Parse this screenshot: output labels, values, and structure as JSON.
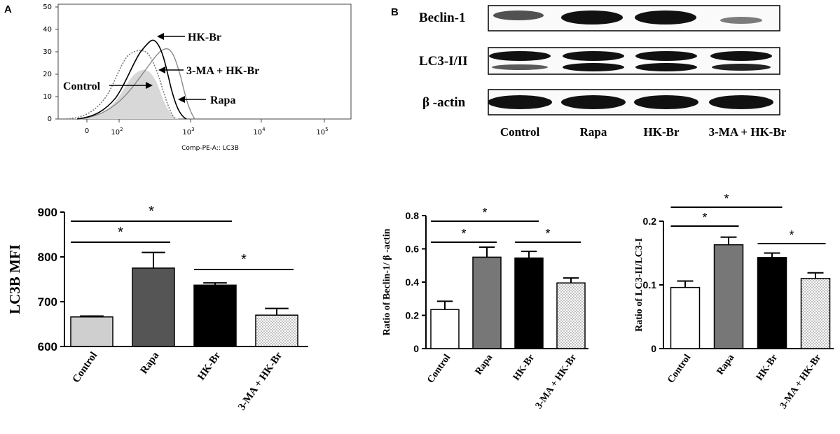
{
  "panel_labels": [
    "A",
    "B"
  ],
  "flow": {
    "type": "line",
    "xlabel": "Comp-PE-A:: LC3B",
    "y_ticks": [
      "50",
      "40",
      "30",
      "20",
      "10",
      "0"
    ],
    "x_ticks": [
      {
        "base": "0",
        "exp": ""
      },
      {
        "base": "10",
        "exp": "2"
      },
      {
        "base": "10",
        "exp": "3"
      },
      {
        "base": "10",
        "exp": "4"
      },
      {
        "base": "10",
        "exp": "5"
      }
    ],
    "annotations": [
      "HK-Br",
      "3-MA + HK-Br",
      "Control",
      "Rapa"
    ]
  },
  "blot": {
    "rows": [
      "Beclin-1",
      "LC3-I/II",
      "β -actin"
    ],
    "lanes": [
      "Control",
      "Rapa",
      "HK-Br",
      "3-MA + HK-Br"
    ]
  },
  "chart_data": [
    {
      "type": "bar",
      "ylabel": "LC3B MFI",
      "categories": [
        "Control",
        "Rapa",
        "HK-Br",
        "3-MA + HK-Br"
      ],
      "values": [
        666,
        775,
        737,
        670
      ],
      "errors": [
        2,
        35,
        5,
        15
      ],
      "ylim": [
        600,
        900
      ],
      "y_ticks": [
        "900",
        "800",
        "700",
        "600"
      ],
      "fills": [
        "#cfcfcf",
        "#555555",
        "#000000",
        "dots"
      ],
      "significance": [
        {
          "from": 0,
          "to": 1,
          "label": "*"
        },
        {
          "from": 0,
          "to": 2,
          "label": "*"
        },
        {
          "from": 2,
          "to": 3,
          "label": "*"
        }
      ]
    },
    {
      "type": "bar",
      "ylabel": "Ratio of Beclin-1/ β -actin",
      "categories": [
        "Control",
        "Rapa",
        "HK-Br",
        "3-MA + HK-Br"
      ],
      "values": [
        0.235,
        0.55,
        0.545,
        0.395
      ],
      "errors": [
        0.05,
        0.06,
        0.04,
        0.03
      ],
      "ylim": [
        0,
        0.8
      ],
      "y_ticks": [
        "0.8",
        "0.6",
        "0.4",
        "0.2",
        "0"
      ],
      "fills": [
        "#ffffff",
        "#777777",
        "#000000",
        "dots"
      ],
      "significance": [
        {
          "from": 0,
          "to": 1,
          "label": "*"
        },
        {
          "from": 0,
          "to": 2,
          "label": "*"
        },
        {
          "from": 2,
          "to": 3,
          "label": "*"
        }
      ]
    },
    {
      "type": "bar",
      "ylabel": "Ratio of LC3-II/LC3-I",
      "categories": [
        "Control",
        "Rapa",
        "HK-Br",
        "3-MA + HK-Br"
      ],
      "values": [
        0.096,
        0.163,
        0.143,
        0.11
      ],
      "errors": [
        0.01,
        0.012,
        0.007,
        0.009
      ],
      "ylim": [
        0,
        0.2
      ],
      "y_ticks": [
        "0.2",
        "0.1",
        "0"
      ],
      "fills": [
        "#ffffff",
        "#777777",
        "#000000",
        "dots"
      ],
      "significance": [
        {
          "from": 0,
          "to": 1,
          "label": "*"
        },
        {
          "from": 0,
          "to": 2,
          "label": "*"
        },
        {
          "from": 2,
          "to": 3,
          "label": "*"
        }
      ]
    }
  ]
}
